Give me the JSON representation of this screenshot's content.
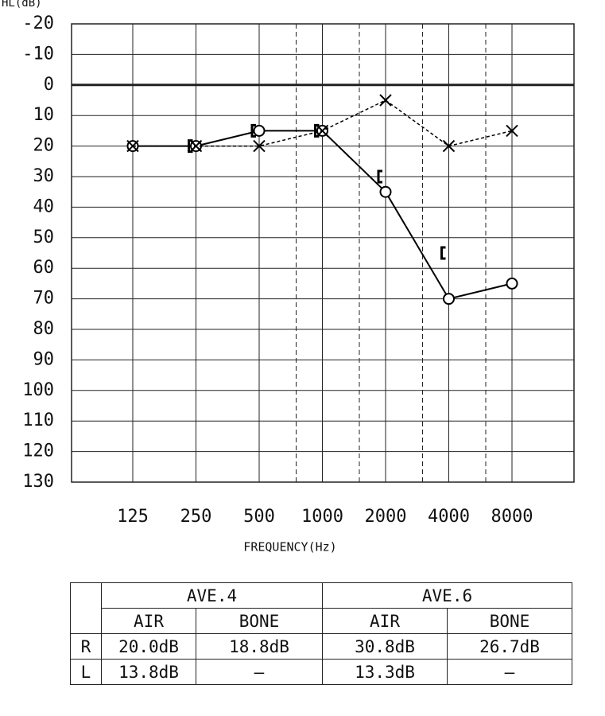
{
  "chart_data": {
    "type": "line",
    "y_label": "HL(dB)",
    "x_label": "FREQUENCY(Hz)",
    "categories": [
      "125",
      "250",
      "500",
      "1000",
      "2000",
      "4000",
      "8000"
    ],
    "series": [
      {
        "color": "#000000",
        "marker": "circle",
        "line": "solid",
        "values": [
          20,
          20,
          15,
          15,
          35,
          70,
          65
        ]
      },
      {
        "color": "#000000",
        "marker": "cross",
        "line": "dashed",
        "values": [
          20,
          20,
          20,
          15,
          5,
          20,
          15
        ]
      },
      {
        "color": "#000000",
        "marker": "bracket",
        "line": "none",
        "values": [
          null,
          20,
          15,
          15,
          30,
          55,
          null
        ]
      }
    ],
    "ylim": [
      -20,
      130
    ],
    "y_inverted": true,
    "yticks": [
      -20,
      -10,
      0,
      10,
      20,
      30,
      40,
      50,
      60,
      70,
      80,
      90,
      100,
      110,
      120,
      130
    ],
    "grid": true
  },
  "table": {
    "groups": [
      "AVE.4",
      "AVE.6"
    ],
    "subheaders": [
      "AIR",
      "BONE",
      "AIR",
      "BONE"
    ],
    "rows": [
      [
        "R",
        "20.0dB",
        "18.8dB",
        "30.8dB",
        "26.7dB"
      ],
      [
        "L",
        "13.8dB",
        "–",
        "13.3dB",
        "–"
      ]
    ]
  }
}
